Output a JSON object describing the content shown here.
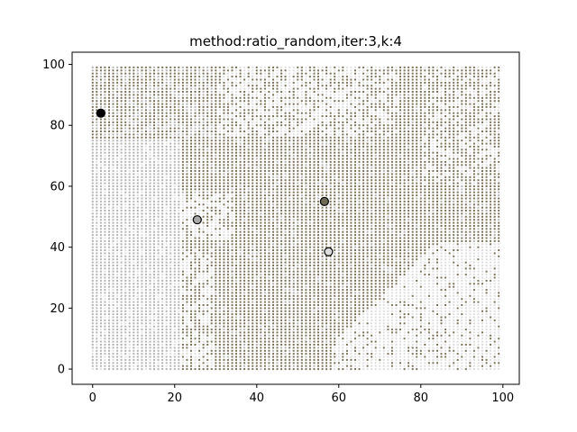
{
  "chart_data": {
    "type": "scatter",
    "title": "method:ratio_random,iter:3,k:4",
    "xlabel": "",
    "ylabel": "",
    "xlim": [
      -5,
      104
    ],
    "ylim": [
      -5,
      104
    ],
    "xticks": [
      0,
      20,
      40,
      60,
      80,
      100
    ],
    "yticks": [
      0,
      20,
      40,
      60,
      80,
      100
    ],
    "grid": false,
    "background_grid": {
      "x_range": [
        0,
        99
      ],
      "y_range": [
        0,
        99
      ],
      "step": 1,
      "colors": {
        "olive": "#7a735a",
        "silver": "#b4b4b4",
        "light": "#dedede"
      },
      "description_class": [
        "olive",
        "silver",
        "light"
      ]
    },
    "centroids": [
      {
        "x": 2,
        "y": 84,
        "color": "#000000"
      },
      {
        "x": 25.5,
        "y": 49,
        "color": "#a8a8a8"
      },
      {
        "x": 56.5,
        "y": 55,
        "color": "#6e6a55"
      },
      {
        "x": 57.5,
        "y": 38.5,
        "color": "#dcdcdc"
      }
    ]
  }
}
